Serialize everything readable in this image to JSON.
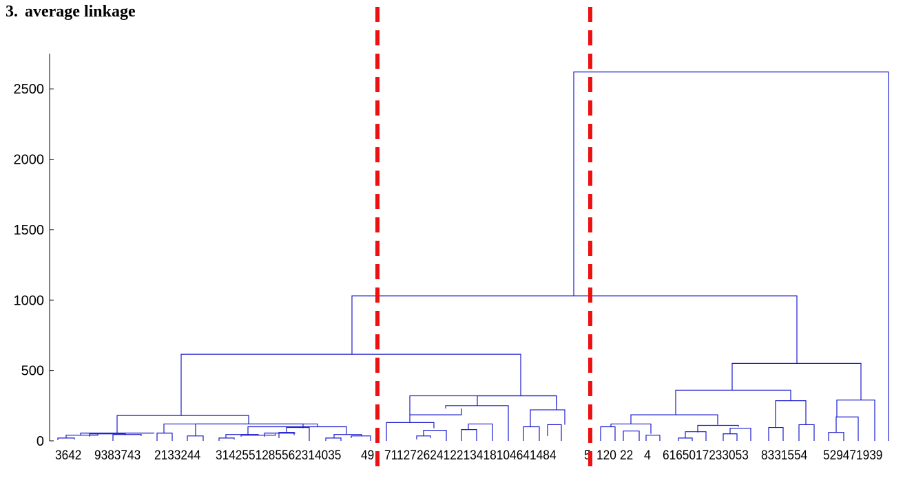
{
  "heading": {
    "number": "3.",
    "text": "average linkage"
  },
  "chart_data": {
    "type": "dendrogram",
    "title": "",
    "xlabel": "",
    "ylabel": "",
    "ylim": [
      0,
      2750
    ],
    "y_ticks": [
      0,
      500,
      1000,
      1500,
      2000,
      2500
    ],
    "y_tick_labels": [
      "0",
      "500",
      "1000",
      "1500",
      "2000",
      "2500"
    ],
    "leaf_labels": [
      "36",
      "42",
      "9",
      "38",
      "37",
      "43",
      "21",
      "33",
      "24",
      "4",
      "31",
      "42",
      "5",
      "51",
      "28",
      "5",
      "5",
      "5",
      "23",
      "14",
      "0",
      "35",
      "49",
      "7",
      "11",
      "27",
      "26",
      "24",
      "12",
      "21",
      "34",
      "18",
      "10",
      "46",
      "41",
      "48",
      "45",
      "12",
      "0",
      "22",
      "4",
      "6",
      "16",
      "50",
      "17",
      "23",
      "30",
      "53",
      "8",
      "33",
      "15",
      "54",
      "52",
      "9",
      "47",
      "19",
      "39"
    ],
    "leaf_label_strings": [
      "3642",
      "9383743",
      "2133244",
      "3142551285562314035",
      "49",
      "71127262412213418104641484",
      "5",
      "120",
      "22",
      "4",
      "6165017233053",
      "8331554",
      "529471939"
    ],
    "cluster_heights": [
      2620,
      1030,
      615,
      550,
      360,
      320,
      285,
      250,
      230,
      200,
      185,
      180,
      170,
      130,
      120,
      115,
      110,
      100,
      90,
      80,
      60,
      50,
      40,
      30,
      20
    ],
    "merge_colors": [
      "#0000cc"
    ],
    "cut_lines": 2,
    "cut_color": "#ee1111",
    "line_color": "#1a1acc",
    "grid": false
  }
}
